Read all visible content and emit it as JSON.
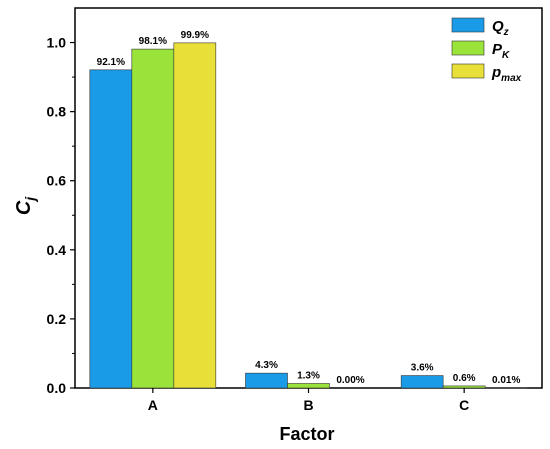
{
  "chart_data": {
    "type": "bar",
    "categories": [
      "A",
      "B",
      "C"
    ],
    "series": [
      {
        "key": "Qz",
        "name_main": "Q",
        "name_sub": "z",
        "color": "#1a9be8",
        "values": [
          0.921,
          0.043,
          0.036
        ],
        "labels": [
          "92.1%",
          "4.3%",
          "3.6%"
        ]
      },
      {
        "key": "PK",
        "name_main": "P",
        "name_sub": "K",
        "color": "#99e33a",
        "values": [
          0.981,
          0.013,
          0.006
        ],
        "labels": [
          "98.1%",
          "1.3%",
          "0.6%"
        ]
      },
      {
        "key": "pmax",
        "name_main": "p",
        "name_sub": "max",
        "color": "#e8df38",
        "values": [
          0.999,
          0.0,
          0.0001
        ],
        "labels": [
          "99.9%",
          "0.00%",
          "0.01%"
        ]
      }
    ],
    "xlabel": "Factor",
    "ylabel_main": "C",
    "ylabel_sub": "j",
    "ylim": [
      0,
      1.0
    ],
    "yticks": [
      0.0,
      0.2,
      0.4,
      0.6,
      0.8,
      1.0
    ],
    "ytick_labels": [
      "0.0",
      "0.2",
      "0.4",
      "0.6",
      "0.8",
      "1.0"
    ],
    "legend_position": "top-right",
    "grid": false
  }
}
